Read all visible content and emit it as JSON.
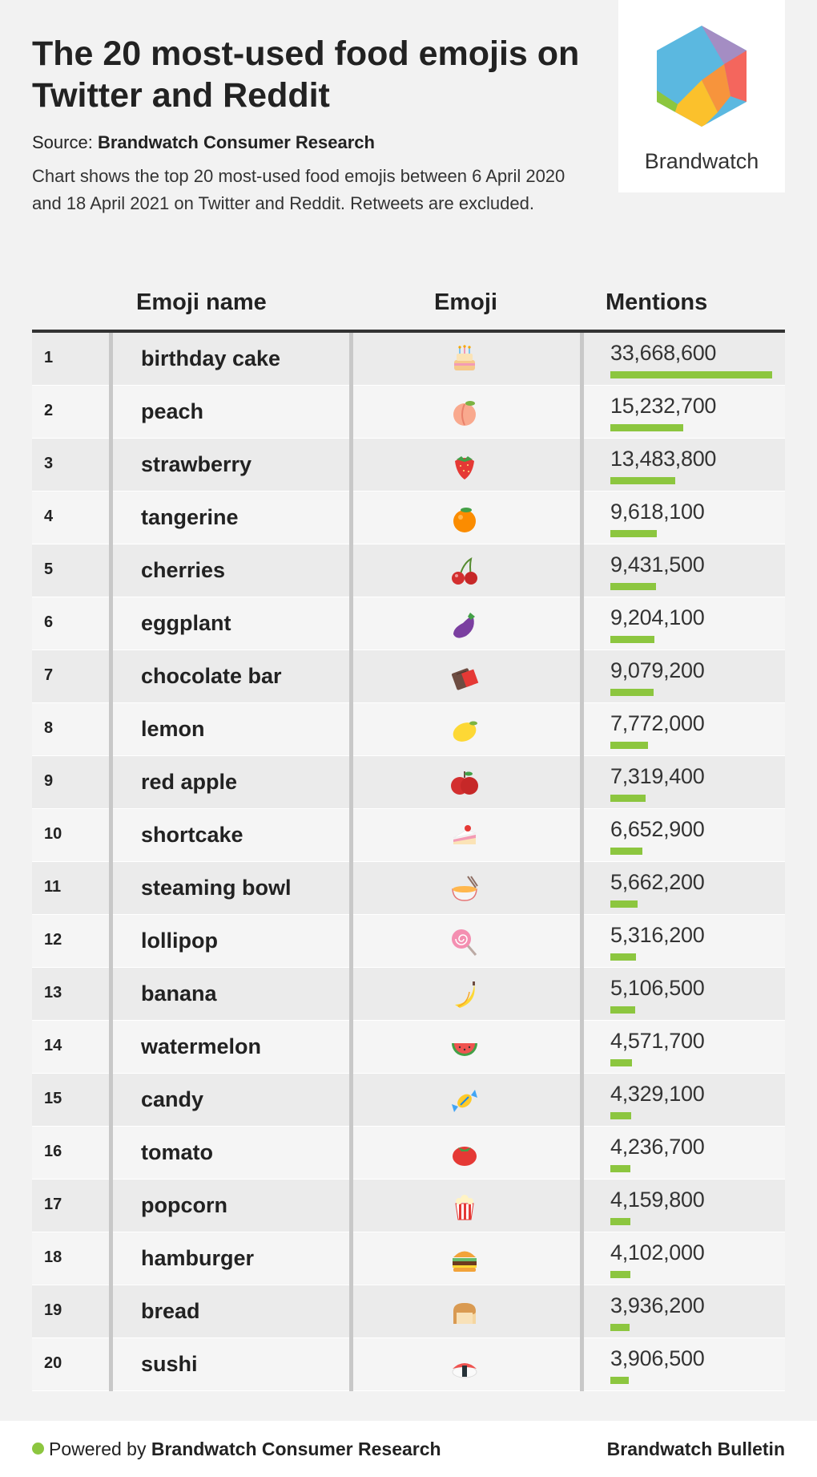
{
  "header": {
    "title": "The 20 most-used food emojis on Twitter and Reddit",
    "source_prefix": "Source: ",
    "source_name": "Brandwatch Consumer Research",
    "description": "Chart shows the top 20 most-used food emojis between 6 April 2020 and 18 April 2021 on Twitter and Reddit. Retweets are excluded.",
    "logo_text": "Brandwatch"
  },
  "table": {
    "col_name": "Emoji name",
    "col_emoji": "Emoji",
    "col_mentions": "Mentions"
  },
  "chart_data": {
    "type": "table",
    "columns": [
      "",
      "Emoji name",
      "Emoji",
      "Mentions"
    ],
    "bar_color": "#8cc63f",
    "rows": [
      {
        "rank": "1",
        "name": "birthday cake",
        "icon": "birthday-cake-icon",
        "mentions_label": "33,668,600",
        "mentions": 33668600
      },
      {
        "rank": "2",
        "name": "peach",
        "icon": "peach-icon",
        "mentions_label": "15,232,700",
        "mentions": 15232700
      },
      {
        "rank": "3",
        "name": "strawberry",
        "icon": "strawberry-icon",
        "mentions_label": "13,483,800",
        "mentions": 13483800
      },
      {
        "rank": "4",
        "name": "tangerine",
        "icon": "tangerine-icon",
        "mentions_label": "9,618,100",
        "mentions": 9618100
      },
      {
        "rank": "5",
        "name": "cherries",
        "icon": "cherries-icon",
        "mentions_label": "9,431,500",
        "mentions": 9431500
      },
      {
        "rank": "6",
        "name": "eggplant",
        "icon": "eggplant-icon",
        "mentions_label": "9,204,100",
        "mentions": 9204100
      },
      {
        "rank": "7",
        "name": "chocolate bar",
        "icon": "chocolate-bar-icon",
        "mentions_label": "9,079,200",
        "mentions": 9079200
      },
      {
        "rank": "8",
        "name": "lemon",
        "icon": "lemon-icon",
        "mentions_label": "7,772,000",
        "mentions": 7772000
      },
      {
        "rank": "9",
        "name": "red apple",
        "icon": "red-apple-icon",
        "mentions_label": "7,319,400",
        "mentions": 7319400
      },
      {
        "rank": "10",
        "name": "shortcake",
        "icon": "shortcake-icon",
        "mentions_label": "6,652,900",
        "mentions": 6652900
      },
      {
        "rank": "11",
        "name": "steaming bowl",
        "icon": "steaming-bowl-icon",
        "mentions_label": "5,662,200",
        "mentions": 5662200
      },
      {
        "rank": "12",
        "name": "lollipop",
        "icon": "lollipop-icon",
        "mentions_label": "5,316,200",
        "mentions": 5316200
      },
      {
        "rank": "13",
        "name": "banana",
        "icon": "banana-icon",
        "mentions_label": "5,106,500",
        "mentions": 5106500
      },
      {
        "rank": "14",
        "name": "watermelon",
        "icon": "watermelon-icon",
        "mentions_label": "4,571,700",
        "mentions": 4571700
      },
      {
        "rank": "15",
        "name": "candy",
        "icon": "candy-icon",
        "mentions_label": "4,329,100",
        "mentions": 4329100
      },
      {
        "rank": "16",
        "name": "tomato",
        "icon": "tomato-icon",
        "mentions_label": "4,236,700",
        "mentions": 4236700
      },
      {
        "rank": "17",
        "name": "popcorn",
        "icon": "popcorn-icon",
        "mentions_label": "4,159,800",
        "mentions": 4159800
      },
      {
        "rank": "18",
        "name": "hamburger",
        "icon": "hamburger-icon",
        "mentions_label": "4,102,000",
        "mentions": 4102000
      },
      {
        "rank": "19",
        "name": "bread",
        "icon": "bread-icon",
        "mentions_label": "3,936,200",
        "mentions": 3936200
      },
      {
        "rank": "20",
        "name": "sushi",
        "icon": "sushi-icon",
        "mentions_label": "3,906,500",
        "mentions": 3906500
      }
    ]
  },
  "footer": {
    "powered_prefix": "Powered by ",
    "powered_name": "Brandwatch Consumer Research",
    "bulletin": "Brandwatch Bulletin"
  }
}
